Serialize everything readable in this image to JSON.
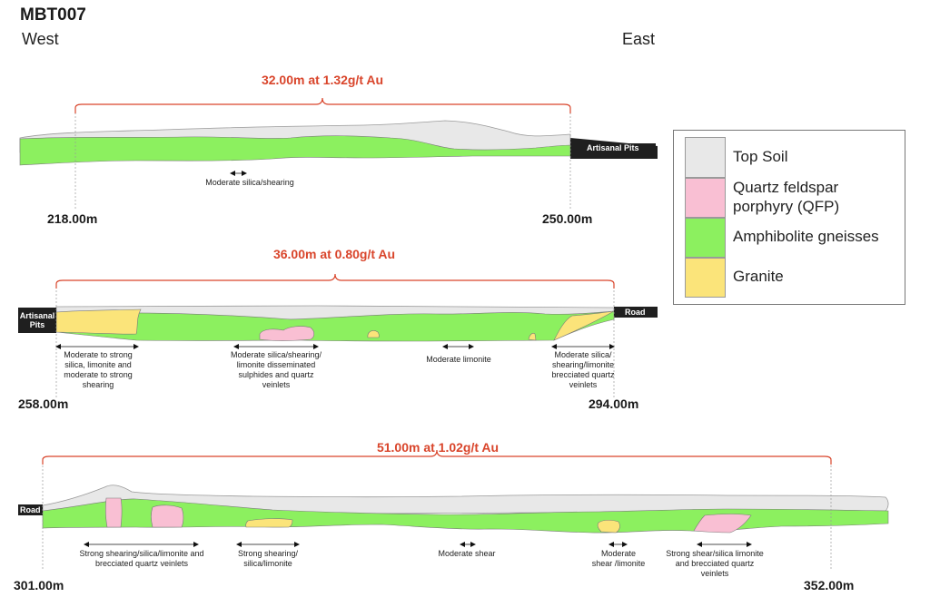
{
  "title": "MBT007",
  "west": "West",
  "east": "East",
  "sections": [
    {
      "grade": "32.00m at 1.32g/t Au",
      "from": "218.00m",
      "to": "250.00m",
      "east_tag": "Artisanal Pits",
      "notes": [
        "Moderate silica/shearing"
      ]
    },
    {
      "grade": "36.00m at 0.80g/t Au",
      "from": "258.00m",
      "to": "294.00m",
      "west_tag": "Artisanal Pits",
      "east_tag": "Road",
      "notes": [
        "Moderate to strong silica, limonite and moderate to strong shearing",
        "Moderate silica/shearing/ limonite disseminated sulphides and quartz veinlets",
        "Moderate limonite",
        "Moderate silica/ shearing/limonite brecciated quartz veinlets"
      ]
    },
    {
      "grade": "51.00m at 1.02g/t Au",
      "from": "301.00m",
      "to": "352.00m",
      "west_tag": "Road",
      "notes": [
        "Strong shearing/silica/limonite and brecciated quartz veinlets",
        "Strong shearing/ silica/limonite",
        "Moderate shear",
        "Moderate shear /limonite",
        "Strong shear/silica limonite and brecciated quartz veinlets"
      ]
    }
  ],
  "legend": [
    {
      "label": "Top Soil",
      "color": "#e8e8e8"
    },
    {
      "label": "Quartz feldspar porphyry (QFP)",
      "color": "#f9bfd3"
    },
    {
      "label": "Amphibolite gneisses",
      "color": "#8cf05f"
    },
    {
      "label": "Granite",
      "color": "#fbe47a"
    }
  ],
  "colors": {
    "grade": "#d9452b",
    "soil": "#e8e8e8",
    "amph": "#8cf05f",
    "granite": "#fbe47a",
    "qfp": "#f9bfd3"
  }
}
